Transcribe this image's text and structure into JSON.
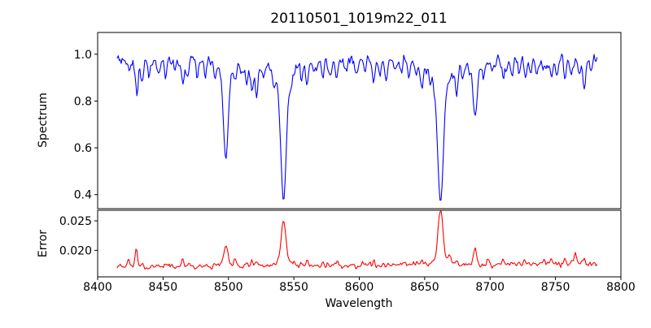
{
  "chart_data": {
    "type": "line",
    "title": "20110501_1019m22_011",
    "xlabel": "Wavelength",
    "xlim": [
      8400,
      8800
    ],
    "xticks": [
      8400,
      8450,
      8500,
      8550,
      8600,
      8650,
      8700,
      8750,
      8800
    ],
    "x_data_range": [
      8415,
      8782
    ],
    "x_step": 0.75,
    "noise_seed": 3,
    "grid": false,
    "legend": "none",
    "subplots": [
      {
        "name": "spectrum",
        "ylabel": "Spectrum",
        "color": "#0000ff",
        "ylim": [
          0.34,
          1.093
        ],
        "yticks": [
          0.4,
          0.6,
          0.8,
          1.0
        ],
        "ytick_labels": [
          "0.4",
          "0.6",
          "0.8",
          "1.0"
        ],
        "continuum": 0.975,
        "noise_sigma": 0.014,
        "major_absorption_lines": [
          {
            "center": 8498.0,
            "depth": 0.42,
            "gauss_sigma": 1.7,
            "lorentz_gamma": 3.2,
            "lorentz_frac": 0.35
          },
          {
            "center": 8542.1,
            "depth": 0.6,
            "gauss_sigma": 1.9,
            "lorentz_gamma": 4.0,
            "lorentz_frac": 0.4
          },
          {
            "center": 8662.1,
            "depth": 0.605,
            "gauss_sigma": 2.0,
            "lorentz_gamma": 4.3,
            "lorentz_frac": 0.42
          },
          {
            "center": 8688.6,
            "depth": 0.235,
            "gauss_sigma": 1.5,
            "lorentz_gamma": 2.6,
            "lorentz_frac": 0.3
          }
        ],
        "minor_absorption_lines": [
          [
            8424,
            0.05,
            1.0
          ],
          [
            8430,
            0.145,
            0.9
          ],
          [
            8434,
            0.09,
            1.0
          ],
          [
            8439,
            0.055,
            1.0
          ],
          [
            8447,
            0.05,
            1.0
          ],
          [
            8452,
            0.06,
            0.9
          ],
          [
            8459,
            0.04,
            1.0
          ],
          [
            8465,
            0.09,
            1.0
          ],
          [
            8469,
            0.055,
            0.9
          ],
          [
            8476,
            0.045,
            1.0
          ],
          [
            8482,
            0.05,
            1.0
          ],
          [
            8490,
            0.045,
            1.0
          ],
          [
            8505,
            0.06,
            1.0
          ],
          [
            8510,
            0.05,
            1.0
          ],
          [
            8514,
            0.1,
            1.0
          ],
          [
            8518,
            0.12,
            1.0
          ],
          [
            8521.5,
            0.14,
            1.0
          ],
          [
            8527,
            0.06,
            1.0
          ],
          [
            8535,
            0.05,
            1.0
          ],
          [
            8548,
            0.04,
            1.0
          ],
          [
            8556,
            0.06,
            1.0
          ],
          [
            8560,
            0.095,
            1.0
          ],
          [
            8566,
            0.05,
            1.0
          ],
          [
            8572,
            0.075,
            1.0
          ],
          [
            8578,
            0.045,
            1.0
          ],
          [
            8583,
            0.07,
            1.0
          ],
          [
            8590,
            0.045,
            1.0
          ],
          [
            8598,
            0.06,
            1.0
          ],
          [
            8604,
            0.045,
            1.0
          ],
          [
            8611,
            0.09,
            1.0
          ],
          [
            8616,
            0.05,
            1.0
          ],
          [
            8621,
            0.065,
            1.0
          ],
          [
            8627,
            0.05,
            1.0
          ],
          [
            8632,
            0.045,
            1.0
          ],
          [
            8638,
            0.06,
            1.0
          ],
          [
            8643,
            0.05,
            1.0
          ],
          [
            8648,
            0.095,
            1.1
          ],
          [
            8654,
            0.05,
            1.0
          ],
          [
            8674.5,
            0.125,
            1.1
          ],
          [
            8679,
            0.06,
            1.0
          ],
          [
            8695,
            0.05,
            1.0
          ],
          [
            8702,
            0.045,
            1.0
          ],
          [
            8710,
            0.07,
            1.0
          ],
          [
            8713,
            0.05,
            0.9
          ],
          [
            8717,
            0.06,
            1.0
          ],
          [
            8722,
            0.045,
            1.0
          ],
          [
            8727,
            0.07,
            1.0
          ],
          [
            8731,
            0.05,
            0.9
          ],
          [
            8736,
            0.06,
            1.0
          ],
          [
            8741,
            0.05,
            1.0
          ],
          [
            8747,
            0.07,
            1.0
          ],
          [
            8751,
            0.045,
            1.0
          ],
          [
            8757,
            0.06,
            1.0
          ],
          [
            8762,
            0.05,
            1.0
          ],
          [
            8768,
            0.055,
            1.0
          ],
          [
            8772,
            0.13,
            1.0
          ],
          [
            8777,
            0.05,
            1.0
          ]
        ]
      },
      {
        "name": "error",
        "ylabel": "Error",
        "color": "#ff0000",
        "ylim": [
          0.0155,
          0.0268
        ],
        "yticks": [
          0.02,
          0.025
        ],
        "ytick_labels": [
          "0.020",
          "0.025"
        ],
        "baseline": 0.01715,
        "baseline_slope_per_angstrom": 1.5e-06,
        "noise_sigma": 0.00022,
        "peaks": [
          [
            8424,
            0.0008,
            0.9
          ],
          [
            8429.5,
            0.0028,
            0.9
          ],
          [
            8434,
            0.0009,
            0.9
          ],
          [
            8452,
            0.0006,
            0.9
          ],
          [
            8465,
            0.0013,
            1.0
          ],
          [
            8470,
            0.0006,
            0.9
          ],
          [
            8490,
            0.0005,
            0.9
          ],
          [
            8498,
            0.0034,
            1.7
          ],
          [
            8505,
            0.0011,
            0.9
          ],
          [
            8514,
            0.0006,
            0.9
          ],
          [
            8518,
            0.0008,
            0.9
          ],
          [
            8521.5,
            0.0009,
            0.9
          ],
          [
            8542.1,
            0.0064,
            1.8
          ],
          [
            8542.1,
            0.0012,
            4.5
          ],
          [
            8556,
            0.0005,
            0.9
          ],
          [
            8560,
            0.0008,
            0.9
          ],
          [
            8572,
            0.0005,
            0.9
          ],
          [
            8583,
            0.0005,
            0.9
          ],
          [
            8611,
            0.0006,
            0.9
          ],
          [
            8621,
            0.0004,
            0.9
          ],
          [
            8648,
            0.0006,
            0.9
          ],
          [
            8662.1,
            0.0082,
            1.8
          ],
          [
            8662.1,
            0.0014,
            4.5
          ],
          [
            8669,
            0.0012,
            1.1
          ],
          [
            8674.5,
            0.0008,
            0.9
          ],
          [
            8688.6,
            0.0026,
            1.2
          ],
          [
            8698,
            0.001,
            0.9
          ],
          [
            8710,
            0.0006,
            0.9
          ],
          [
            8727,
            0.0006,
            0.9
          ],
          [
            8741,
            0.0005,
            0.9
          ],
          [
            8747,
            0.0008,
            0.9
          ],
          [
            8757,
            0.0007,
            0.9
          ],
          [
            8765,
            0.0016,
            1.1
          ],
          [
            8772,
            0.001,
            0.9
          ]
        ]
      }
    ]
  }
}
